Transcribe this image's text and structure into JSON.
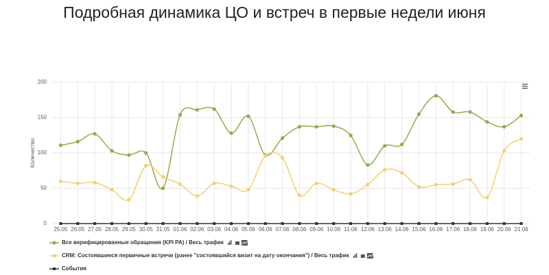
{
  "chart_data": {
    "type": "line",
    "title": "Подробная динамика ЦО и встреч в первые недели июня",
    "y_label": "Количество",
    "categories": [
      "25.05",
      "26.05",
      "27.05",
      "28.05",
      "29.05",
      "30.05",
      "31.05",
      "01.06",
      "02.06",
      "03.06",
      "04.06",
      "05.06",
      "06.06",
      "07.06",
      "08.06",
      "09.06",
      "10.06",
      "11.06",
      "12.06",
      "13.06",
      "14.06",
      "15.06",
      "16.06",
      "17.06",
      "18.06",
      "19.06",
      "20.06",
      "21.06"
    ],
    "series": [
      {
        "name": "Все верифицированные обращения (KPI PA) / Весь трафик",
        "color": "#8fac4b",
        "values": [
          111,
          116,
          127,
          103,
          97,
          100,
          50,
          154,
          161,
          162,
          128,
          152,
          97,
          121,
          137,
          137,
          138,
          125,
          83,
          110,
          112,
          155,
          181,
          158,
          158,
          144,
          137,
          153
        ]
      },
      {
        "name": "CRM: Состоявшиеся первичные встречи (ранее \"состоявшийся визит на дату окончания\") / Весь трафик",
        "color": "#f5cf6e",
        "values": [
          60,
          57,
          58,
          48,
          34,
          82,
          66,
          56,
          39,
          57,
          53,
          48,
          96,
          93,
          40,
          57,
          48,
          42,
          55,
          76,
          72,
          52,
          55,
          56,
          62,
          37,
          103,
          120
        ]
      },
      {
        "name": "События",
        "color": "#333333",
        "values": [
          0,
          0,
          0,
          0,
          0,
          0,
          0,
          0,
          0,
          0,
          0,
          0,
          0,
          0,
          0,
          0,
          0,
          0,
          0,
          0,
          0,
          0,
          0,
          0,
          0,
          0,
          0,
          0
        ]
      }
    ],
    "ylim": [
      0,
      200
    ],
    "yticks": [
      0,
      50,
      100,
      150,
      200
    ],
    "grid": true,
    "legend": "bottom"
  }
}
